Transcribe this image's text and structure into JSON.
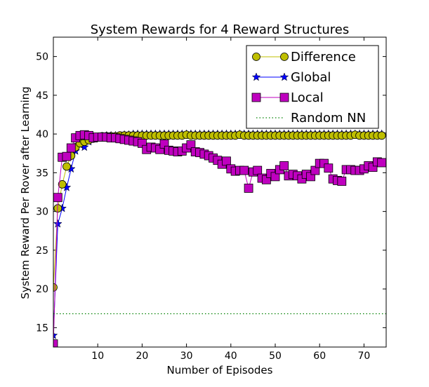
{
  "chart_data": {
    "type": "line",
    "title": "System Rewards for 4 Reward Structures",
    "xlabel": "Number of Episodes",
    "ylabel": "System Reward Per Rover after Learning",
    "xlim": [
      0,
      75
    ],
    "ylim": [
      12.5,
      52.5
    ],
    "xticks": [
      10,
      20,
      30,
      40,
      50,
      60,
      70
    ],
    "yticks": [
      15,
      20,
      25,
      30,
      35,
      40,
      45,
      50
    ],
    "grid": false,
    "legend_position": "top-right",
    "series": [
      {
        "name": "Difference",
        "color": "#bfbf00",
        "marker": "circle",
        "x": [
          0,
          1,
          2,
          3,
          4,
          5,
          6,
          7,
          8,
          9,
          10,
          11,
          12,
          13,
          14,
          15,
          16,
          17,
          18,
          19,
          20,
          21,
          22,
          23,
          24,
          25,
          26,
          27,
          28,
          29,
          30,
          31,
          32,
          33,
          34,
          35,
          36,
          37,
          38,
          39,
          40,
          41,
          42,
          43,
          44,
          45,
          46,
          47,
          48,
          49,
          50,
          51,
          52,
          53,
          54,
          55,
          56,
          57,
          58,
          59,
          60,
          61,
          62,
          63,
          64,
          65,
          66,
          67,
          68,
          69,
          70,
          71,
          72,
          73,
          74
        ],
        "y": [
          20.2,
          30.4,
          33.5,
          35.8,
          37.2,
          38.3,
          38.8,
          39.0,
          39.2,
          39.4,
          39.6,
          39.7,
          39.7,
          39.7,
          39.7,
          39.8,
          39.8,
          39.8,
          39.8,
          39.8,
          39.8,
          39.8,
          39.8,
          39.8,
          39.8,
          39.8,
          39.8,
          39.8,
          39.8,
          39.8,
          39.9,
          39.8,
          39.8,
          39.8,
          39.8,
          39.8,
          39.8,
          39.8,
          39.8,
          39.8,
          39.8,
          39.8,
          39.9,
          39.8,
          39.8,
          39.8,
          39.8,
          39.8,
          39.8,
          39.8,
          39.8,
          39.8,
          39.8,
          39.8,
          39.8,
          39.8,
          39.8,
          39.8,
          39.8,
          39.8,
          39.8,
          39.8,
          39.8,
          39.8,
          39.8,
          39.8,
          39.8,
          39.8,
          39.9,
          39.8,
          39.8,
          39.8,
          39.8,
          39.8,
          39.8
        ]
      },
      {
        "name": "Global",
        "color": "#0000ff",
        "marker": "star",
        "x": [
          0,
          1,
          2,
          3,
          4,
          5,
          6,
          7,
          8,
          9,
          10,
          11,
          12,
          13,
          14,
          15,
          16,
          17,
          18,
          19,
          20,
          21,
          22,
          23,
          24,
          25,
          26,
          27,
          28,
          29,
          30,
          31,
          32,
          33,
          34,
          35,
          36,
          37,
          38,
          39,
          40,
          41,
          42,
          43,
          44,
          45,
          46,
          47,
          48,
          49,
          50,
          51,
          52,
          53,
          54,
          55,
          56,
          57,
          58,
          59,
          60,
          61,
          62,
          63,
          64,
          65,
          66,
          67,
          68,
          69,
          70,
          71,
          72,
          73,
          74
        ],
        "y": [
          14.0,
          28.4,
          30.4,
          33.1,
          35.5,
          37.8,
          38.6,
          38.3,
          39.0,
          39.4,
          39.6,
          39.7,
          39.8,
          39.8,
          39.8,
          39.8,
          39.9,
          39.9,
          40.0,
          40.0,
          40.0,
          40.0,
          40.0,
          40.0,
          40.0,
          40.0,
          40.0,
          40.0,
          40.0,
          40.0,
          40.0,
          40.0,
          40.0,
          40.0,
          40.0,
          40.0,
          40.0,
          40.0,
          40.0,
          40.0,
          40.0,
          40.0,
          40.0,
          40.0,
          40.0,
          40.0,
          40.0,
          40.0,
          40.0,
          40.0,
          40.0,
          40.0,
          40.0,
          40.0,
          40.0,
          40.0,
          40.0,
          40.0,
          40.0,
          40.0,
          40.0,
          40.0,
          40.0,
          40.0,
          40.0,
          40.0,
          40.0,
          40.0,
          40.0,
          40.0,
          40.0,
          40.0,
          40.0,
          40.0,
          40.0
        ]
      },
      {
        "name": "Local",
        "color": "#bf00bf",
        "marker": "square",
        "x": [
          0,
          1,
          2,
          3,
          4,
          5,
          6,
          7,
          8,
          9,
          10,
          11,
          12,
          13,
          14,
          15,
          16,
          17,
          18,
          19,
          20,
          21,
          22,
          23,
          24,
          25,
          26,
          27,
          28,
          29,
          30,
          31,
          32,
          33,
          34,
          35,
          36,
          37,
          38,
          39,
          40,
          41,
          42,
          43,
          44,
          45,
          46,
          47,
          48,
          49,
          50,
          51,
          52,
          53,
          54,
          55,
          56,
          57,
          58,
          59,
          60,
          61,
          62,
          63,
          64,
          65,
          66,
          67,
          68,
          69,
          70,
          71,
          72,
          73,
          74
        ],
        "y": [
          12.9,
          31.8,
          37.0,
          37.1,
          38.2,
          39.5,
          39.8,
          39.9,
          39.8,
          39.5,
          39.6,
          39.6,
          39.6,
          39.5,
          39.5,
          39.4,
          39.3,
          39.2,
          39.1,
          39.0,
          38.8,
          38.0,
          38.3,
          38.2,
          38.0,
          38.7,
          37.9,
          37.8,
          37.7,
          37.8,
          38.2,
          38.6,
          37.7,
          37.6,
          37.4,
          37.2,
          36.9,
          36.6,
          36.1,
          36.5,
          35.5,
          35.2,
          35.3,
          35.3,
          33.0,
          35.1,
          35.3,
          34.3,
          34.1,
          34.9,
          34.5,
          35.4,
          35.9,
          34.6,
          34.8,
          34.6,
          34.2,
          34.8,
          34.5,
          35.3,
          36.2,
          36.2,
          35.6,
          34.2,
          34.0,
          33.9,
          35.4,
          35.4,
          35.3,
          35.3,
          35.5,
          35.9,
          35.7,
          36.4,
          36.3
        ]
      },
      {
        "name": "Random NN",
        "color": "#008000",
        "marker": "none",
        "style": "dotted",
        "x": [
          0,
          75
        ],
        "y": [
          16.8,
          16.8
        ]
      }
    ]
  }
}
